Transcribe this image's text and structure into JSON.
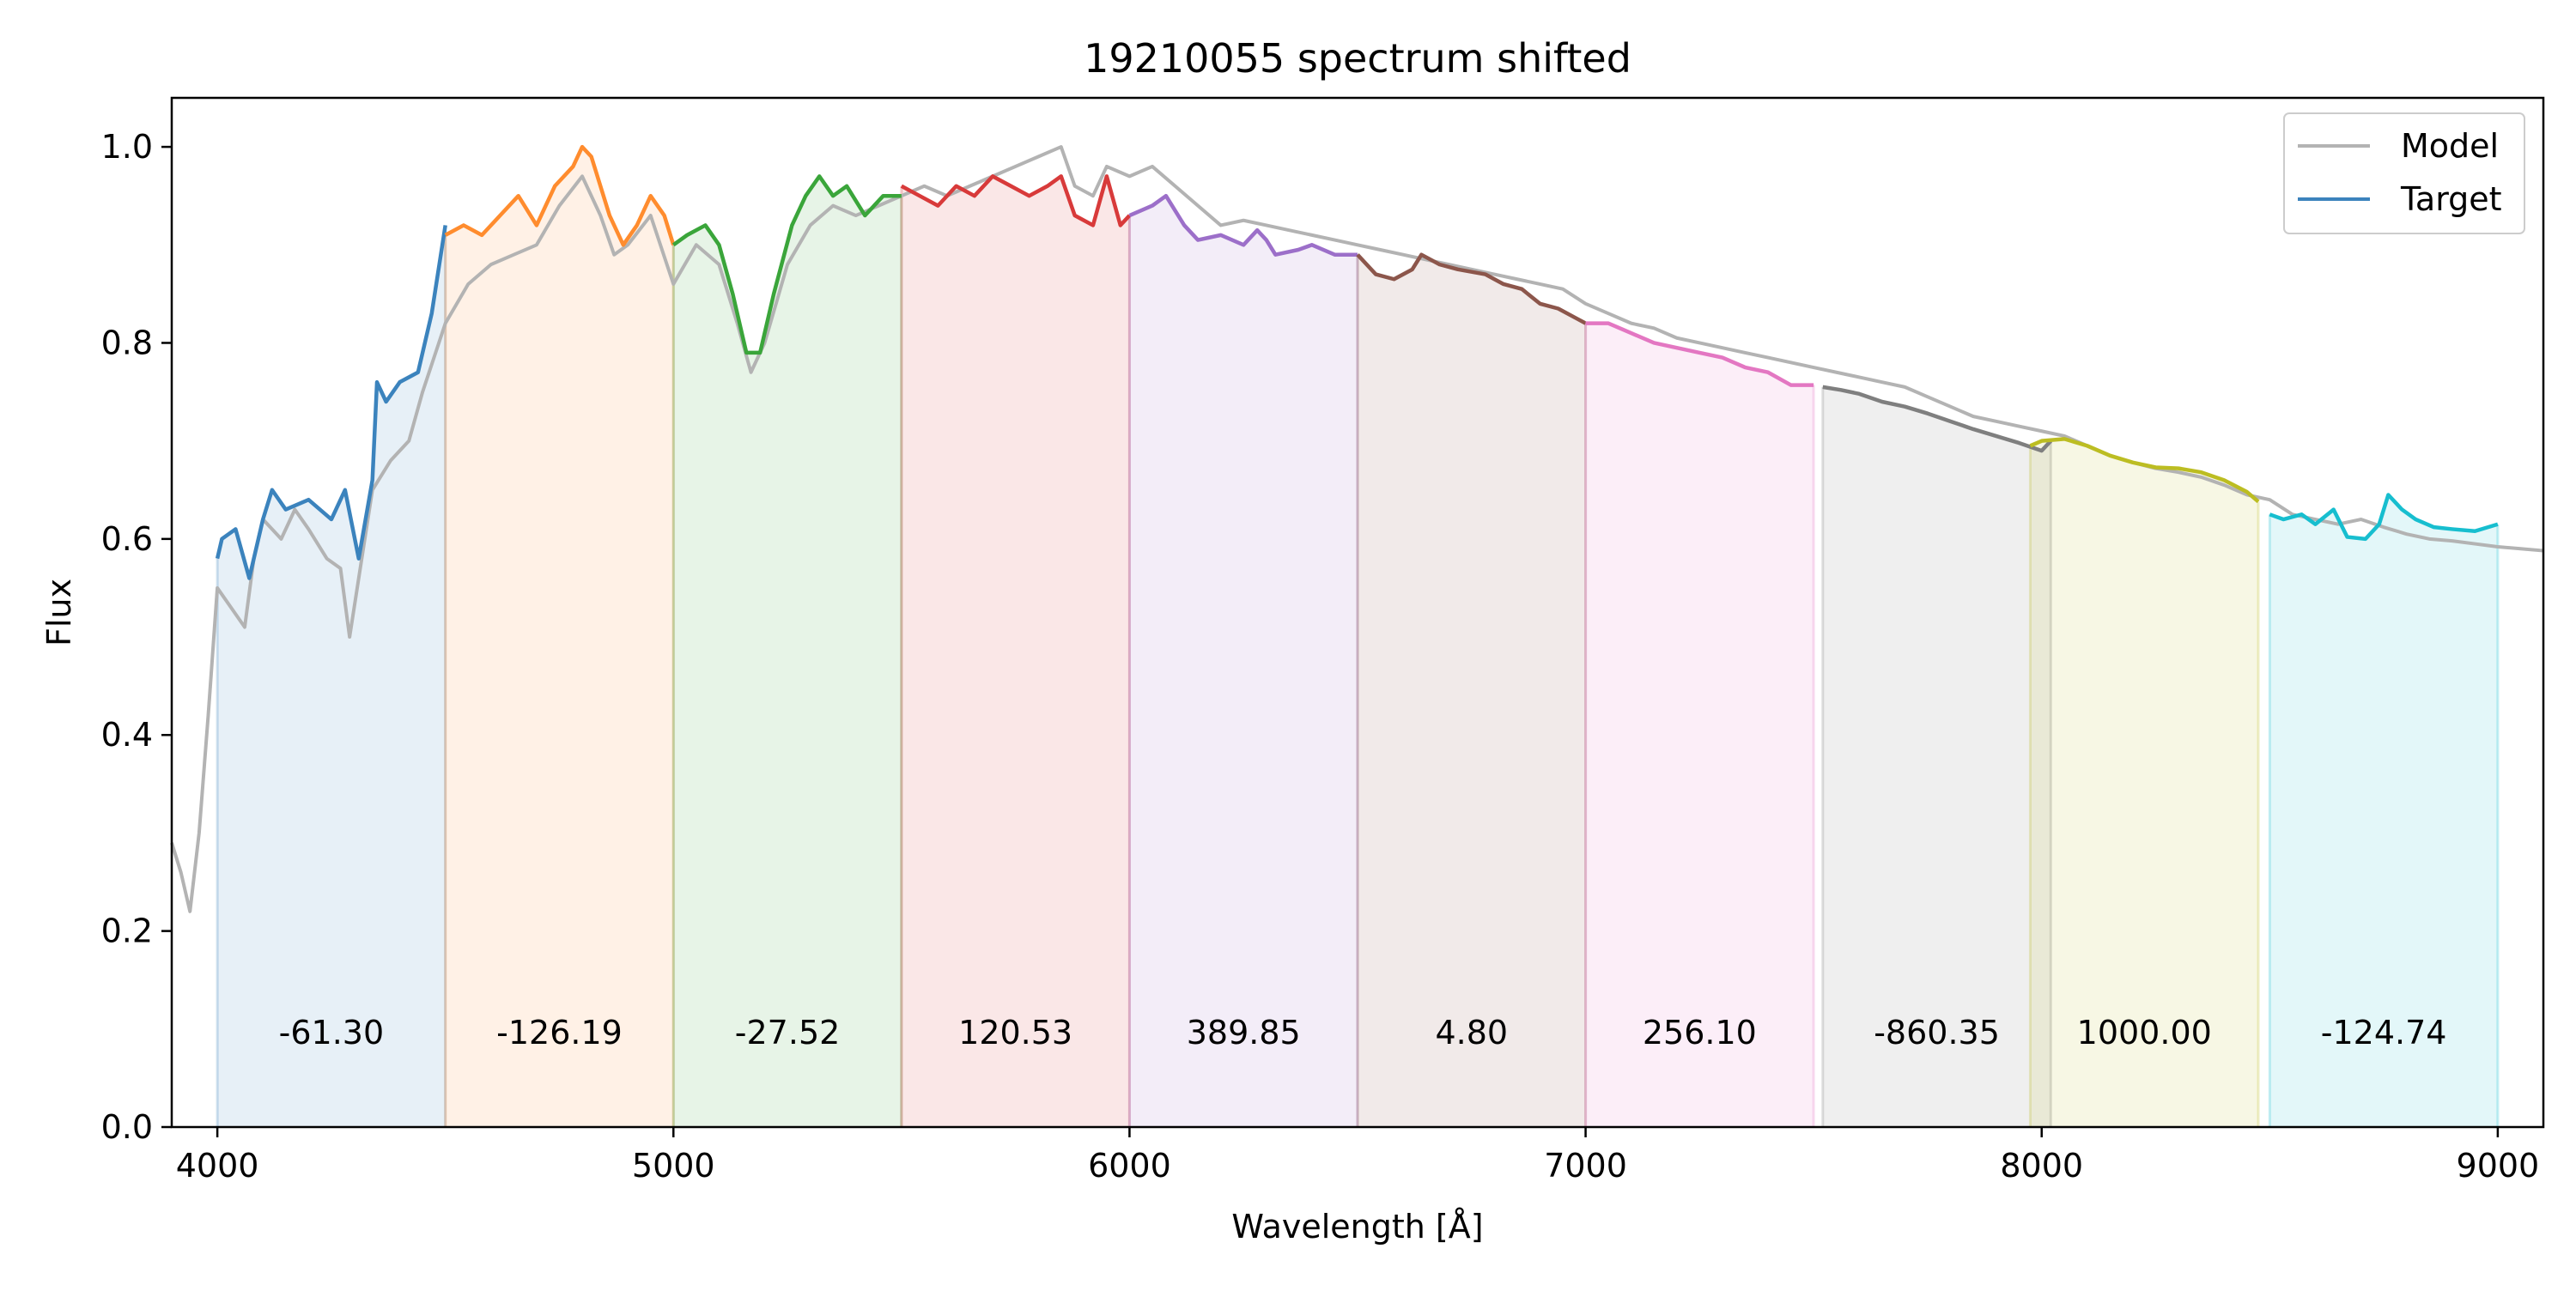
{
  "chart_data": {
    "type": "line",
    "title": "19210055 spectrum shifted",
    "xlabel": "Wavelength [Å]",
    "ylabel": "Flux",
    "xlim": [
      3900,
      9100
    ],
    "ylim": [
      0.0,
      1.05
    ],
    "x_ticks": [
      4000,
      5000,
      6000,
      7000,
      8000,
      9000
    ],
    "y_ticks": [
      0.0,
      0.2,
      0.4,
      0.6,
      0.8,
      1.0
    ],
    "x_tick_labels": [
      "4000",
      "5000",
      "6000",
      "7000",
      "8000",
      "9000"
    ],
    "y_tick_labels": [
      "0.0",
      "0.2",
      "0.4",
      "0.6",
      "0.8",
      "1.0"
    ],
    "grid": false,
    "legend": {
      "placement": "top-right",
      "entries": [
        {
          "label": "Model",
          "color": "#b3b3b3"
        },
        {
          "label": "Target",
          "color": "#3b83bd"
        }
      ]
    },
    "model": {
      "name": "Model",
      "color": "#b3b3b3",
      "points": [
        [
          3900,
          0.29
        ],
        [
          3920,
          0.26
        ],
        [
          3940,
          0.22
        ],
        [
          3960,
          0.3
        ],
        [
          3980,
          0.42
        ],
        [
          4000,
          0.55
        ],
        [
          4030,
          0.53
        ],
        [
          4060,
          0.51
        ],
        [
          4080,
          0.58
        ],
        [
          4100,
          0.62
        ],
        [
          4140,
          0.6
        ],
        [
          4170,
          0.63
        ],
        [
          4200,
          0.61
        ],
        [
          4240,
          0.58
        ],
        [
          4270,
          0.57
        ],
        [
          4290,
          0.5
        ],
        [
          4310,
          0.56
        ],
        [
          4340,
          0.65
        ],
        [
          4380,
          0.68
        ],
        [
          4420,
          0.7
        ],
        [
          4450,
          0.75
        ],
        [
          4500,
          0.82
        ],
        [
          4550,
          0.86
        ],
        [
          4600,
          0.88
        ],
        [
          4650,
          0.89
        ],
        [
          4700,
          0.9
        ],
        [
          4750,
          0.94
        ],
        [
          4800,
          0.97
        ],
        [
          4840,
          0.93
        ],
        [
          4870,
          0.89
        ],
        [
          4900,
          0.9
        ],
        [
          4950,
          0.93
        ],
        [
          5000,
          0.86
        ],
        [
          5050,
          0.9
        ],
        [
          5100,
          0.88
        ],
        [
          5140,
          0.82
        ],
        [
          5170,
          0.77
        ],
        [
          5200,
          0.8
        ],
        [
          5250,
          0.88
        ],
        [
          5300,
          0.92
        ],
        [
          5350,
          0.94
        ],
        [
          5400,
          0.93
        ],
        [
          5450,
          0.94
        ],
        [
          5500,
          0.95
        ],
        [
          5550,
          0.96
        ],
        [
          5600,
          0.95
        ],
        [
          5650,
          0.96
        ],
        [
          5700,
          0.97
        ],
        [
          5750,
          0.98
        ],
        [
          5800,
          0.99
        ],
        [
          5850,
          1.0
        ],
        [
          5880,
          0.96
        ],
        [
          5920,
          0.95
        ],
        [
          5950,
          0.98
        ],
        [
          6000,
          0.97
        ],
        [
          6050,
          0.98
        ],
        [
          6100,
          0.96
        ],
        [
          6150,
          0.94
        ],
        [
          6200,
          0.92
        ],
        [
          6250,
          0.925
        ],
        [
          6300,
          0.92
        ],
        [
          6350,
          0.915
        ],
        [
          6400,
          0.91
        ],
        [
          6450,
          0.905
        ],
        [
          6500,
          0.9
        ],
        [
          6550,
          0.895
        ],
        [
          6600,
          0.89
        ],
        [
          6650,
          0.885
        ],
        [
          6700,
          0.88
        ],
        [
          6750,
          0.875
        ],
        [
          6800,
          0.87
        ],
        [
          6850,
          0.865
        ],
        [
          6900,
          0.86
        ],
        [
          6950,
          0.855
        ],
        [
          7000,
          0.84
        ],
        [
          7050,
          0.83
        ],
        [
          7100,
          0.82
        ],
        [
          7150,
          0.815
        ],
        [
          7200,
          0.805
        ],
        [
          7250,
          0.8
        ],
        [
          7300,
          0.795
        ],
        [
          7350,
          0.79
        ],
        [
          7400,
          0.785
        ],
        [
          7450,
          0.78
        ],
        [
          7500,
          0.775
        ],
        [
          7550,
          0.77
        ],
        [
          7600,
          0.765
        ],
        [
          7650,
          0.76
        ],
        [
          7700,
          0.755
        ],
        [
          7750,
          0.745
        ],
        [
          7800,
          0.735
        ],
        [
          7850,
          0.725
        ],
        [
          7900,
          0.72
        ],
        [
          7950,
          0.715
        ],
        [
          8000,
          0.71
        ],
        [
          8050,
          0.705
        ],
        [
          8100,
          0.695
        ],
        [
          8150,
          0.685
        ],
        [
          8200,
          0.678
        ],
        [
          8250,
          0.672
        ],
        [
          8300,
          0.668
        ],
        [
          8350,
          0.663
        ],
        [
          8400,
          0.655
        ],
        [
          8450,
          0.645
        ],
        [
          8500,
          0.64
        ],
        [
          8550,
          0.625
        ],
        [
          8600,
          0.62
        ],
        [
          8650,
          0.615
        ],
        [
          8700,
          0.62
        ],
        [
          8750,
          0.612
        ],
        [
          8800,
          0.605
        ],
        [
          8850,
          0.6
        ],
        [
          8900,
          0.598
        ],
        [
          8950,
          0.595
        ],
        [
          9000,
          0.592
        ],
        [
          9050,
          0.59
        ],
        [
          9100,
          0.588
        ]
      ]
    },
    "series": [
      {
        "color": "#3b83bd",
        "band": [
          4000,
          4500
        ],
        "label": "-61.30",
        "points": [
          [
            4000,
            0.58
          ],
          [
            4010,
            0.6
          ],
          [
            4040,
            0.61
          ],
          [
            4070,
            0.56
          ],
          [
            4100,
            0.62
          ],
          [
            4120,
            0.65
          ],
          [
            4150,
            0.63
          ],
          [
            4200,
            0.64
          ],
          [
            4250,
            0.62
          ],
          [
            4280,
            0.65
          ],
          [
            4310,
            0.58
          ],
          [
            4340,
            0.66
          ],
          [
            4350,
            0.76
          ],
          [
            4370,
            0.74
          ],
          [
            4400,
            0.76
          ],
          [
            4440,
            0.77
          ],
          [
            4470,
            0.83
          ],
          [
            4500,
            0.92
          ]
        ]
      },
      {
        "color": "#ff8c2e",
        "band": [
          4500,
          5000
        ],
        "label": "-126.19",
        "points": [
          [
            4500,
            0.91
          ],
          [
            4540,
            0.92
          ],
          [
            4580,
            0.91
          ],
          [
            4620,
            0.93
          ],
          [
            4660,
            0.95
          ],
          [
            4700,
            0.92
          ],
          [
            4740,
            0.96
          ],
          [
            4780,
            0.98
          ],
          [
            4800,
            1.0
          ],
          [
            4820,
            0.99
          ],
          [
            4860,
            0.93
          ],
          [
            4890,
            0.9
          ],
          [
            4920,
            0.92
          ],
          [
            4950,
            0.95
          ],
          [
            4980,
            0.93
          ],
          [
            5000,
            0.9
          ]
        ]
      },
      {
        "color": "#3aa53a",
        "band": [
          5000,
          5500
        ],
        "label": "-27.52",
        "points": [
          [
            5000,
            0.9
          ],
          [
            5030,
            0.91
          ],
          [
            5070,
            0.92
          ],
          [
            5100,
            0.9
          ],
          [
            5130,
            0.85
          ],
          [
            5160,
            0.79
          ],
          [
            5190,
            0.79
          ],
          [
            5220,
            0.85
          ],
          [
            5260,
            0.92
          ],
          [
            5290,
            0.95
          ],
          [
            5320,
            0.97
          ],
          [
            5350,
            0.95
          ],
          [
            5380,
            0.96
          ],
          [
            5420,
            0.93
          ],
          [
            5460,
            0.95
          ],
          [
            5500,
            0.95
          ]
        ]
      },
      {
        "color": "#d83a3a",
        "band": [
          5500,
          6000
        ],
        "label": "120.53",
        "points": [
          [
            5500,
            0.96
          ],
          [
            5540,
            0.95
          ],
          [
            5580,
            0.94
          ],
          [
            5620,
            0.96
          ],
          [
            5660,
            0.95
          ],
          [
            5700,
            0.97
          ],
          [
            5740,
            0.96
          ],
          [
            5780,
            0.95
          ],
          [
            5820,
            0.96
          ],
          [
            5850,
            0.97
          ],
          [
            5880,
            0.93
          ],
          [
            5920,
            0.92
          ],
          [
            5950,
            0.97
          ],
          [
            5980,
            0.92
          ],
          [
            6000,
            0.93
          ]
        ]
      },
      {
        "color": "#9c6fc9",
        "band": [
          6000,
          6500
        ],
        "label": "389.85",
        "points": [
          [
            6000,
            0.93
          ],
          [
            6050,
            0.94
          ],
          [
            6080,
            0.95
          ],
          [
            6120,
            0.92
          ],
          [
            6150,
            0.905
          ],
          [
            6200,
            0.91
          ],
          [
            6250,
            0.9
          ],
          [
            6280,
            0.915
          ],
          [
            6300,
            0.905
          ],
          [
            6320,
            0.89
          ],
          [
            6370,
            0.895
          ],
          [
            6400,
            0.9
          ],
          [
            6450,
            0.89
          ],
          [
            6500,
            0.89
          ]
        ]
      },
      {
        "color": "#8c564b",
        "band": [
          6500,
          7000
        ],
        "label": "4.80",
        "points": [
          [
            6500,
            0.89
          ],
          [
            6540,
            0.87
          ],
          [
            6580,
            0.865
          ],
          [
            6620,
            0.875
          ],
          [
            6640,
            0.89
          ],
          [
            6680,
            0.88
          ],
          [
            6720,
            0.875
          ],
          [
            6780,
            0.87
          ],
          [
            6820,
            0.86
          ],
          [
            6860,
            0.855
          ],
          [
            6900,
            0.84
          ],
          [
            6940,
            0.835
          ],
          [
            6980,
            0.825
          ],
          [
            7000,
            0.82
          ]
        ]
      },
      {
        "color": "#e377c2",
        "band": [
          7000,
          7500
        ],
        "label": "256.10",
        "points": [
          [
            7000,
            0.82
          ],
          [
            7050,
            0.82
          ],
          [
            7100,
            0.81
          ],
          [
            7150,
            0.8
          ],
          [
            7200,
            0.795
          ],
          [
            7250,
            0.79
          ],
          [
            7300,
            0.785
          ],
          [
            7350,
            0.775
          ],
          [
            7400,
            0.77
          ],
          [
            7450,
            0.757
          ],
          [
            7500,
            0.757
          ]
        ]
      },
      {
        "color": "#7f7f7f",
        "band": [
          7520,
          8020
        ],
        "label": "-860.35",
        "points": [
          [
            7520,
            0.755
          ],
          [
            7560,
            0.752
          ],
          [
            7600,
            0.748
          ],
          [
            7650,
            0.74
          ],
          [
            7700,
            0.735
          ],
          [
            7750,
            0.728
          ],
          [
            7800,
            0.72
          ],
          [
            7850,
            0.712
          ],
          [
            7900,
            0.705
          ],
          [
            7950,
            0.698
          ],
          [
            8000,
            0.69
          ],
          [
            8020,
            0.7
          ]
        ]
      },
      {
        "color": "#bcbd22",
        "band": [
          7975,
          8475
        ],
        "label": "1000.00",
        "points": [
          [
            7975,
            0.695
          ],
          [
            8000,
            0.7
          ],
          [
            8050,
            0.702
          ],
          [
            8100,
            0.695
          ],
          [
            8150,
            0.685
          ],
          [
            8200,
            0.678
          ],
          [
            8250,
            0.673
          ],
          [
            8300,
            0.672
          ],
          [
            8350,
            0.668
          ],
          [
            8400,
            0.66
          ],
          [
            8450,
            0.648
          ],
          [
            8475,
            0.638
          ]
        ]
      },
      {
        "color": "#17becf",
        "band": [
          8500,
          9000
        ],
        "label": "-124.74",
        "points": [
          [
            8500,
            0.625
          ],
          [
            8530,
            0.62
          ],
          [
            8570,
            0.625
          ],
          [
            8600,
            0.615
          ],
          [
            8640,
            0.63
          ],
          [
            8670,
            0.602
          ],
          [
            8710,
            0.6
          ],
          [
            8740,
            0.615
          ],
          [
            8760,
            0.645
          ],
          [
            8790,
            0.63
          ],
          [
            8820,
            0.62
          ],
          [
            8860,
            0.612
          ],
          [
            8900,
            0.61
          ],
          [
            8950,
            0.608
          ],
          [
            9000,
            0.615
          ]
        ]
      }
    ]
  }
}
